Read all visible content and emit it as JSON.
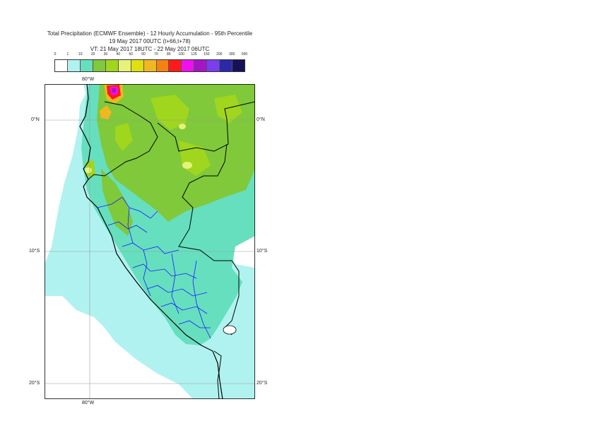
{
  "title": {
    "line1": "Total Precipitation (ECMWF Ensemble) - 12 Hourly Accumulation - 95th Percentile",
    "line2": "19 May 2017 00UTC (t+66,t+78)",
    "line3": "VT: 21 May 2017 18UTC - 22 May 2017 06UTC"
  },
  "legend": {
    "ticks": [
      "0",
      "1",
      "10",
      "20",
      "30",
      "40",
      "50",
      "60",
      "70",
      "80",
      "100",
      "125",
      "150",
      "200",
      "300",
      "500"
    ],
    "colors": [
      "#ffffff",
      "#b0f2ef",
      "#66dfbf",
      "#7fc93a",
      "#a0d61e",
      "#e7f27a",
      "#e0e010",
      "#f0b820",
      "#f58210",
      "#ff1a1a",
      "#ee10ee",
      "#a615c5",
      "#7a3df0",
      "#2b29a8",
      "#161258"
    ]
  },
  "axes": {
    "lon_top": "80°W",
    "lon_bottom": "80°W",
    "lat_left": [
      "0°N",
      "10°S",
      "20°S"
    ],
    "lat_right": [
      "0°N",
      "10°S",
      "20°S"
    ]
  },
  "colors": {
    "sea_light": "#b0f2ef",
    "teal": "#66dfbf",
    "green": "#7fc93a",
    "lime": "#a0d61e",
    "border_country": "#000000",
    "border_region": "#1a1aff",
    "grid": "#9a9a9a"
  }
}
